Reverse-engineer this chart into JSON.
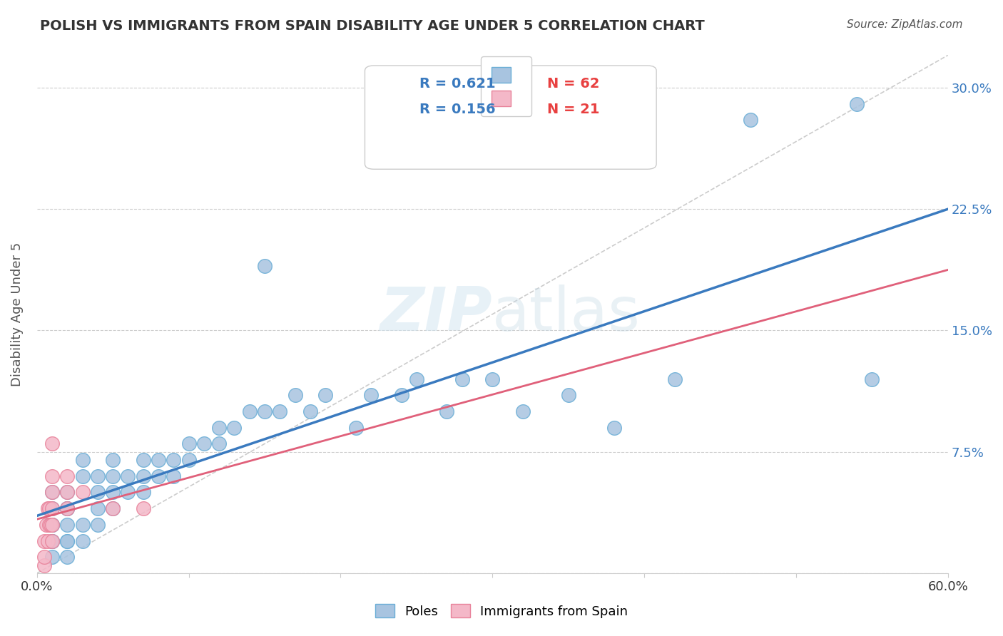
{
  "title": "POLISH VS IMMIGRANTS FROM SPAIN DISABILITY AGE UNDER 5 CORRELATION CHART",
  "source": "Source: ZipAtlas.com",
  "xlabel": "",
  "ylabel": "Disability Age Under 5",
  "xlim": [
    0.0,
    0.6
  ],
  "ylim": [
    0.0,
    0.32
  ],
  "xticks": [
    0.0,
    0.1,
    0.2,
    0.3,
    0.4,
    0.5,
    0.6
  ],
  "xticklabels": [
    "0.0%",
    "",
    "",
    "",
    "",
    "",
    "60.0%"
  ],
  "yticks": [
    0.0,
    0.075,
    0.15,
    0.225,
    0.3
  ],
  "yticklabels": [
    "",
    "7.5%",
    "15.0%",
    "22.5%",
    "30.0%"
  ],
  "legend_r1": "R = 0.621",
  "legend_n1": "N = 62",
  "legend_r2": "R = 0.156",
  "legend_n2": "N = 21",
  "poles_color": "#a8c4e0",
  "poles_edge_color": "#6aaed6",
  "spain_color": "#f4b8c8",
  "spain_edge_color": "#e8829a",
  "trend_color_poles": "#3a7abf",
  "trend_color_spain": "#e0607a",
  "diagonal_color": "#cccccc",
  "watermark": "ZIPatlas",
  "background_color": "#ffffff",
  "poles_x": [
    0.01,
    0.01,
    0.01,
    0.01,
    0.01,
    0.01,
    0.01,
    0.02,
    0.02,
    0.02,
    0.02,
    0.02,
    0.02,
    0.02,
    0.03,
    0.03,
    0.03,
    0.03,
    0.04,
    0.04,
    0.04,
    0.04,
    0.05,
    0.05,
    0.05,
    0.05,
    0.06,
    0.06,
    0.07,
    0.07,
    0.07,
    0.08,
    0.08,
    0.09,
    0.09,
    0.1,
    0.1,
    0.11,
    0.12,
    0.12,
    0.13,
    0.14,
    0.15,
    0.15,
    0.16,
    0.17,
    0.18,
    0.19,
    0.21,
    0.22,
    0.24,
    0.25,
    0.27,
    0.28,
    0.3,
    0.32,
    0.35,
    0.38,
    0.42,
    0.47,
    0.54,
    0.55
  ],
  "poles_y": [
    0.01,
    0.02,
    0.02,
    0.03,
    0.03,
    0.04,
    0.05,
    0.01,
    0.02,
    0.02,
    0.03,
    0.04,
    0.04,
    0.05,
    0.02,
    0.03,
    0.06,
    0.07,
    0.03,
    0.04,
    0.05,
    0.06,
    0.04,
    0.05,
    0.06,
    0.07,
    0.05,
    0.06,
    0.05,
    0.06,
    0.07,
    0.06,
    0.07,
    0.06,
    0.07,
    0.07,
    0.08,
    0.08,
    0.08,
    0.09,
    0.09,
    0.1,
    0.19,
    0.1,
    0.1,
    0.11,
    0.1,
    0.11,
    0.09,
    0.11,
    0.11,
    0.12,
    0.1,
    0.12,
    0.12,
    0.1,
    0.11,
    0.09,
    0.12,
    0.28,
    0.29,
    0.12
  ],
  "spain_x": [
    0.005,
    0.005,
    0.005,
    0.006,
    0.007,
    0.007,
    0.008,
    0.008,
    0.009,
    0.01,
    0.01,
    0.01,
    0.01,
    0.01,
    0.01,
    0.02,
    0.02,
    0.02,
    0.03,
    0.05,
    0.07
  ],
  "spain_y": [
    0.005,
    0.01,
    0.02,
    0.03,
    0.04,
    0.02,
    0.03,
    0.04,
    0.03,
    0.02,
    0.03,
    0.04,
    0.05,
    0.06,
    0.08,
    0.04,
    0.05,
    0.06,
    0.05,
    0.04,
    0.04
  ]
}
